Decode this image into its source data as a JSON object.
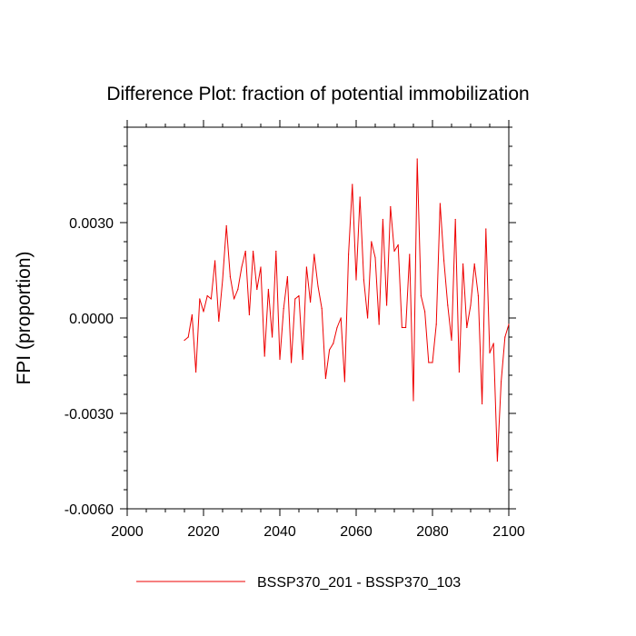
{
  "chart_data": {
    "type": "line",
    "title": "Difference Plot: fraction of potential immobilization",
    "xlabel": "",
    "ylabel": "FPI  (proportion)",
    "xlim": [
      2000,
      2100
    ],
    "ylim": [
      -0.006,
      0.006
    ],
    "x_ticks": [
      2000,
      2020,
      2040,
      2060,
      2080,
      2100
    ],
    "x_tick_labels": [
      "2000",
      "2020",
      "2040",
      "2060",
      "2080",
      "2100"
    ],
    "y_ticks": [
      -0.006,
      -0.003,
      0.0,
      0.003
    ],
    "y_tick_labels": [
      "-0.0060",
      "-0.0030",
      "0.0000",
      "0.0030"
    ],
    "grid": false,
    "legend_position": "bottom",
    "line_color": "#ee0000",
    "series": [
      {
        "name": "BSSP370_201 - BSSP370_103",
        "color": "#ee0000",
        "x": [
          2015,
          2016,
          2017,
          2018,
          2019,
          2020,
          2021,
          2022,
          2023,
          2024,
          2025,
          2026,
          2027,
          2028,
          2029,
          2030,
          2031,
          2032,
          2033,
          2034,
          2035,
          2036,
          2037,
          2038,
          2039,
          2040,
          2041,
          2042,
          2043,
          2044,
          2045,
          2046,
          2047,
          2048,
          2049,
          2050,
          2051,
          2052,
          2053,
          2054,
          2055,
          2056,
          2057,
          2058,
          2059,
          2060,
          2061,
          2062,
          2063,
          2064,
          2065,
          2066,
          2067,
          2068,
          2069,
          2070,
          2071,
          2072,
          2073,
          2074,
          2075,
          2076,
          2077,
          2078,
          2079,
          2080,
          2081,
          2082,
          2083,
          2084,
          2085,
          2086,
          2087,
          2088,
          2089,
          2090,
          2091,
          2092,
          2093,
          2094,
          2095,
          2096,
          2097,
          2098,
          2099,
          2100
        ],
        "values": [
          -0.0007,
          -0.0006,
          0.0001,
          -0.0017,
          0.0006,
          0.0002,
          0.0007,
          0.0006,
          0.0018,
          -0.0001,
          0.0012,
          0.0029,
          0.0013,
          0.0006,
          0.0009,
          0.0016,
          0.0021,
          0.0001,
          0.0021,
          0.0009,
          0.0016,
          -0.0012,
          0.0009,
          -0.0006,
          0.0021,
          -0.0013,
          0.0003,
          0.0013,
          -0.0014,
          0.0006,
          0.0007,
          -0.0013,
          0.0016,
          0.0005,
          0.002,
          0.001,
          0.0003,
          -0.0019,
          -0.001,
          -0.0008,
          -0.0003,
          0.0,
          -0.002,
          0.002,
          0.0042,
          0.0012,
          0.0038,
          0.0012,
          0.0,
          0.0024,
          0.0019,
          -0.0002,
          0.0031,
          0.0004,
          0.0035,
          0.0021,
          0.0023,
          -0.0003,
          -0.0003,
          0.002,
          -0.0026,
          0.005,
          0.0007,
          0.0002,
          -0.0014,
          -0.0014,
          -0.0002,
          0.0036,
          0.0018,
          0.0004,
          -0.0007,
          0.0031,
          -0.0017,
          0.0017,
          -0.0003,
          0.0004,
          0.0017,
          0.0007,
          -0.0027,
          0.0028,
          -0.0011,
          -0.0008,
          -0.0045,
          -0.002,
          -0.0006,
          -0.0002
        ]
      }
    ]
  }
}
